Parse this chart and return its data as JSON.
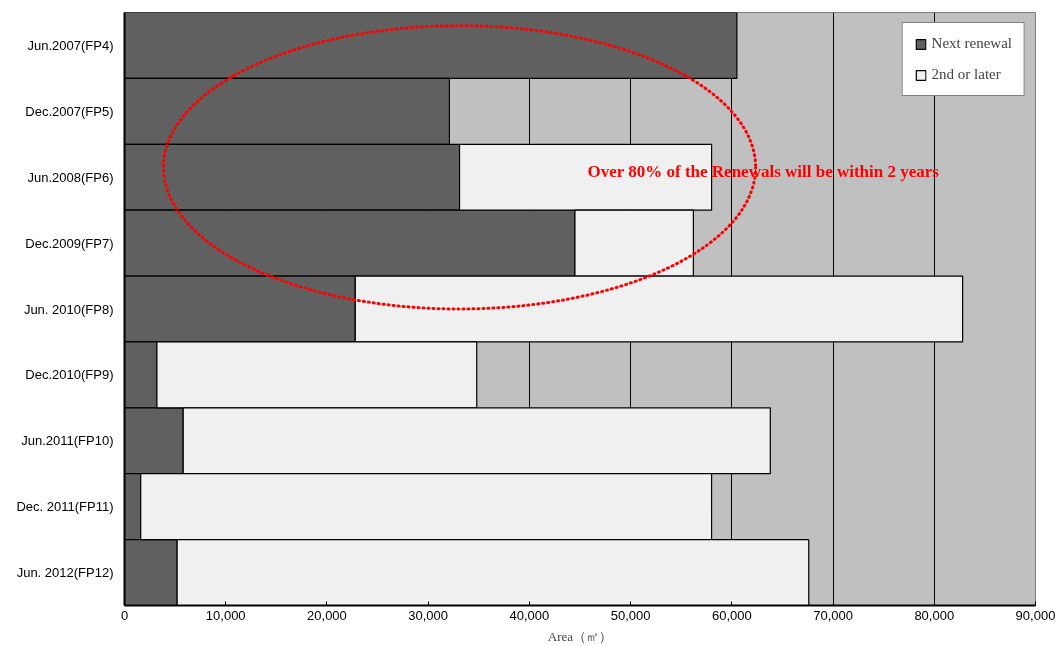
{
  "chart_data": {
    "type": "bar",
    "orientation": "horizontal",
    "stacked": true,
    "categories": [
      "Jun.2007(FP4)",
      "Dec.2007(FP5)",
      "Jun.2008(FP6)",
      "Dec.2009(FP7)",
      "Jun. 2010(FP8)",
      "Dec.2010(FP9)",
      "Jun.2011(FP10)",
      "Dec. 2011(FP11)",
      "Jun. 2012(FP12)"
    ],
    "series": [
      {
        "name": "Next renewal",
        "color": "#606060",
        "values": [
          60500,
          32100,
          33100,
          44500,
          22800,
          3200,
          5800,
          1600,
          5200
        ]
      },
      {
        "name": "2nd or later",
        "color": "#f0f0f0",
        "values": [
          null,
          null,
          24900,
          11700,
          60000,
          31600,
          58000,
          56400,
          62400
        ]
      }
    ],
    "xlim": [
      0,
      90000
    ],
    "xticks": [
      {
        "value": 0,
        "label": "0"
      },
      {
        "value": 10000,
        "label": "10,000"
      },
      {
        "value": 20000,
        "label": "20,000"
      },
      {
        "value": 30000,
        "label": "30,000"
      },
      {
        "value": 40000,
        "label": "40,000"
      },
      {
        "value": 50000,
        "label": "50,000"
      },
      {
        "value": 60000,
        "label": "60,000"
      },
      {
        "value": 70000,
        "label": "70,000"
      },
      {
        "value": 80000,
        "label": "80,000"
      },
      {
        "value": 90000,
        "label": "90,000"
      }
    ],
    "xlabel": "Area（㎡）",
    "grid": "x",
    "legend": "top right",
    "annotations": [
      "Over 80% of the Renewals will be within 2 years"
    ]
  }
}
